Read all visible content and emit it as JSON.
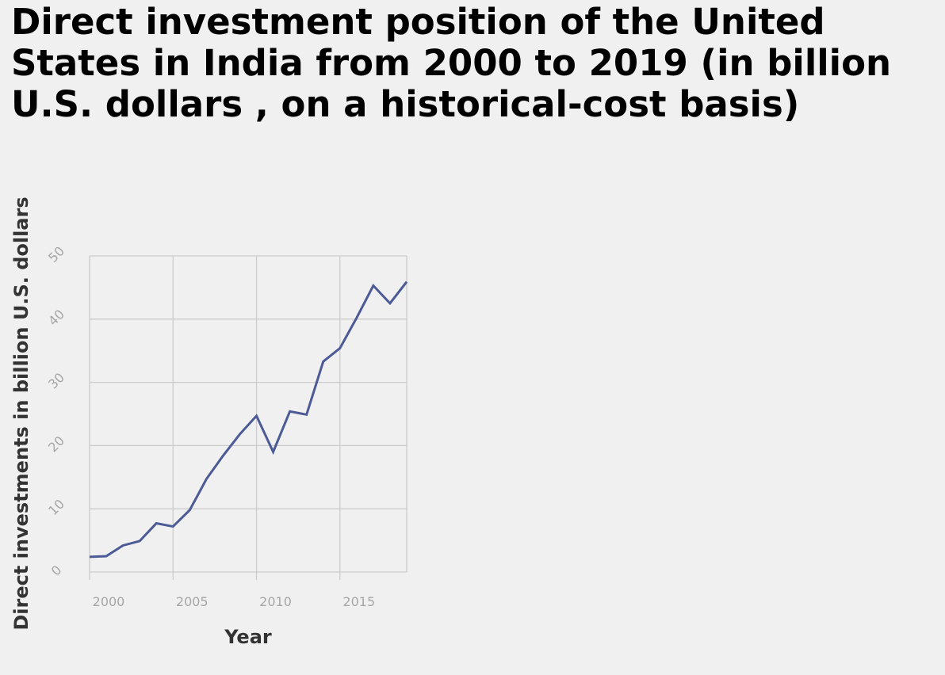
{
  "chart_data": {
    "type": "line",
    "title": "Direct investment position of the United States in India from 2000 to 2019 (in billion U.S. dollars , on a historical-cost basis)",
    "xlabel": "Year",
    "ylabel": "Direct investments in billion U.S. dollars",
    "xlim": [
      2000,
      2019
    ],
    "ylim": [
      0,
      50
    ],
    "xticks": [
      2000,
      2005,
      2010,
      2015
    ],
    "yticks": [
      0,
      10,
      20,
      30,
      40,
      50
    ],
    "grid": true,
    "legend": "none",
    "line_color": "#4c5a96",
    "series": [
      {
        "x": [
          2000,
          2001,
          2002,
          2003,
          2004,
          2005,
          2006,
          2007,
          2008,
          2009,
          2010,
          2011,
          2012,
          2013,
          2014,
          2015,
          2016,
          2017,
          2018,
          2019
        ],
        "values": [
          2.4,
          2.5,
          4.2,
          4.9,
          7.7,
          7.2,
          9.8,
          14.7,
          18.4,
          21.8,
          24.7,
          19.0,
          25.4,
          24.9,
          33.3,
          35.4,
          40.2,
          45.3,
          42.5,
          45.9
        ]
      }
    ]
  }
}
